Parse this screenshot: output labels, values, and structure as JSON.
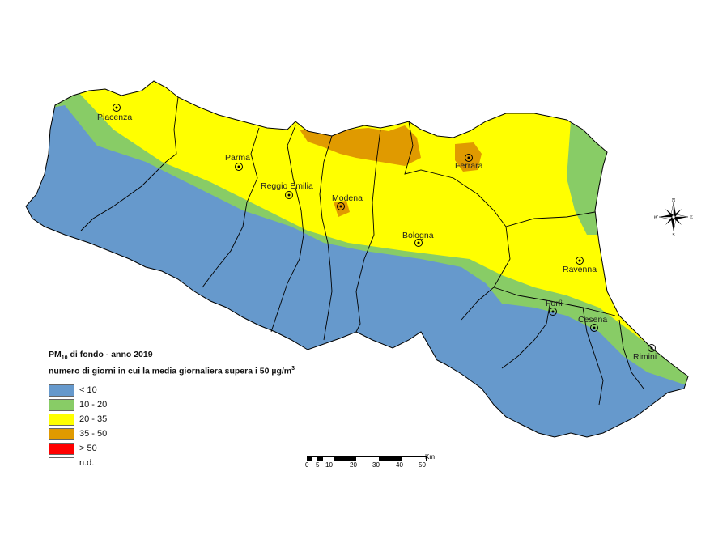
{
  "legend": {
    "title_pm": "PM",
    "title_sub": "10",
    "title_rest": " di fondo - anno 2019",
    "subtitle": "numero di giorni in cui la media giornaliera supera i 50 µg/m",
    "subtitle_sup": "3",
    "items": [
      {
        "label": "< 10",
        "color": "#6699cc"
      },
      {
        "label": "10 - 20",
        "color": "#88cc66"
      },
      {
        "label": "20 - 35",
        "color": "#ffff00"
      },
      {
        "label": "35 - 50",
        "color": "#e09a00"
      },
      {
        "label": "> 50",
        "color": "#ff0000"
      },
      {
        "label": "n.d.",
        "color": "#ffffff"
      }
    ]
  },
  "cities": [
    "Piacenza",
    "Parma",
    "Reggio Emilia",
    "Modena",
    "Ferrara",
    "Bologna",
    "Ravenna",
    "Forlì",
    "Cesena",
    "Rimini"
  ],
  "scale_bar": {
    "ticks": [
      "0",
      "5",
      "10",
      "20",
      "30",
      "40",
      "50"
    ],
    "unit": "Km"
  },
  "compass": {
    "n": "N",
    "s": "S",
    "e": "E",
    "w": "W"
  }
}
